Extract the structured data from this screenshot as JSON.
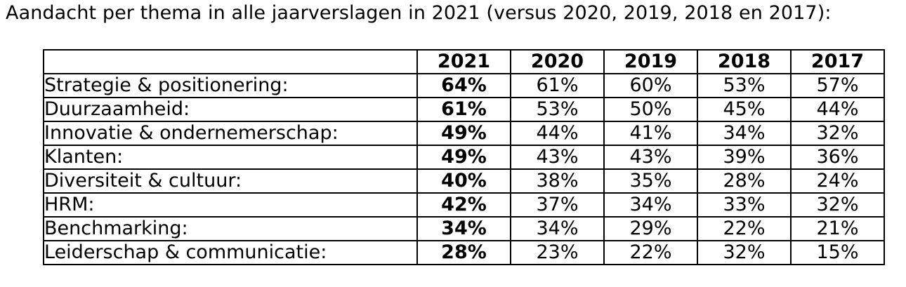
{
  "title": "Aandacht per thema in alle jaarverslagen in 2021 (versus 2020, 2019, 2018 en 2017):",
  "table": {
    "corner": "",
    "years": [
      "2021",
      "2020",
      "2019",
      "2018",
      "2017"
    ],
    "rows": [
      {
        "label": "Strategie & positionering:",
        "values": [
          "64%",
          "61%",
          "60%",
          "53%",
          "57%"
        ]
      },
      {
        "label": "Duurzaamheid:",
        "values": [
          "61%",
          "53%",
          "50%",
          "45%",
          "44%"
        ]
      },
      {
        "label": "Innovatie & ondernemerschap:",
        "values": [
          "49%",
          "44%",
          "41%",
          "34%",
          "32%"
        ]
      },
      {
        "label": "Klanten:",
        "values": [
          "49%",
          "43%",
          "43%",
          "39%",
          "36%"
        ]
      },
      {
        "label": "Diversiteit & cultuur:",
        "values": [
          "40%",
          "38%",
          "35%",
          "28%",
          "24%"
        ]
      },
      {
        "label": "HRM:",
        "values": [
          "42%",
          "37%",
          "34%",
          "33%",
          "32%"
        ]
      },
      {
        "label": "Benchmarking:",
        "values": [
          "34%",
          "34%",
          "29%",
          "22%",
          "21%"
        ]
      },
      {
        "label": "Leiderschap & communicatie:",
        "values": [
          "28%",
          "23%",
          "22%",
          "32%",
          "15%"
        ]
      }
    ]
  }
}
